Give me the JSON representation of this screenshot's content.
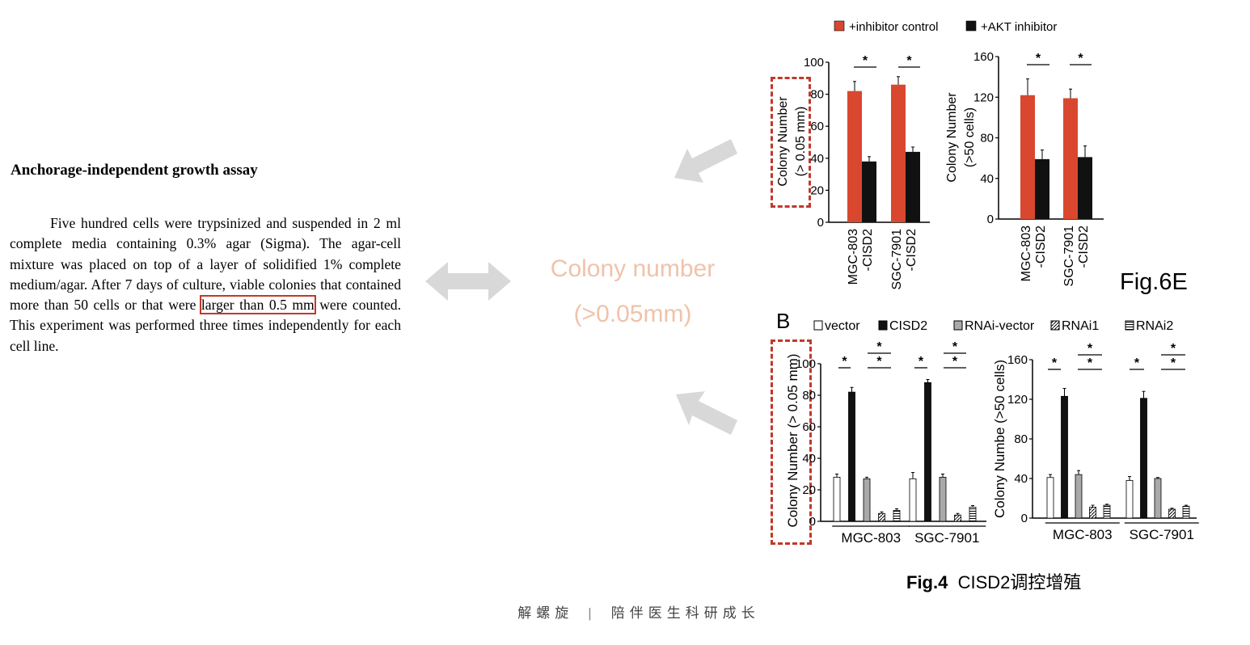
{
  "methods": {
    "heading": "Anchorage-independent growth assay",
    "body_part1": "Five hundred cells were trypsinized and suspended in 2 ml complete media containing 0.3% agar (Sigma). The agar-cell mixture was placed on top of a layer of solidified 1% complete medium/agar. After 7 days of culture, viable colonies that contained more than 50 cells or that were ",
    "body_highlight": "larger than 0.5 mm",
    "body_part2": " were counted. This experiment was performed three times independently for each cell line."
  },
  "center_note": {
    "line1": "Colony number",
    "line2": "(>0.05mm)"
  },
  "colors": {
    "red_bar": "#d9472f",
    "black_bar": "#111111",
    "gray_bar": "#a9a9a9",
    "highlight": "#c0392b",
    "arrow": "#d8d8d8",
    "note": "#efc3aa"
  },
  "figure_labels": {
    "fig6e": "Fig.6E",
    "panel_b": "B"
  },
  "caption": {
    "bold": "Fig.4",
    "text": "CISD2调控增殖"
  },
  "footer": {
    "left": "解螺旋",
    "separator": "|",
    "right": "陪伴医生科研成长"
  },
  "chart_data": [
    {
      "id": "fig6e-left",
      "type": "bar",
      "ylabel_line1": "Colony Number",
      "ylabel_line2": "(> 0.05 mm)",
      "ylim": [
        0,
        100
      ],
      "yticks": [
        0,
        20,
        40,
        60,
        80,
        100
      ],
      "groups": [
        "MGC-803\n-CISD2",
        "SGC-7901\n-CISD2"
      ],
      "legend": [
        "+inhibitor control",
        "+AKT inhibitor"
      ],
      "legend_placement": "top",
      "series": [
        {
          "name": "+inhibitor control",
          "values": [
            82,
            86
          ],
          "errors": [
            6,
            5
          ]
        },
        {
          "name": "+AKT inhibitor",
          "values": [
            38,
            44
          ],
          "errors": [
            3,
            3
          ]
        }
      ],
      "annotations": [
        "*",
        "*"
      ]
    },
    {
      "id": "fig6e-right",
      "type": "bar",
      "ylabel_line1": "Colony Number",
      "ylabel_line2": "(>50 cells)",
      "ylim": [
        0,
        160
      ],
      "yticks": [
        0,
        40,
        80,
        120,
        160
      ],
      "groups": [
        "MGC-803\n-CISD2",
        "SGC-7901\n-CISD2"
      ],
      "series": [
        {
          "name": "+inhibitor control",
          "values": [
            122,
            119
          ],
          "errors": [
            16,
            9
          ]
        },
        {
          "name": "+AKT inhibitor",
          "values": [
            59,
            61
          ],
          "errors": [
            9,
            11
          ]
        }
      ],
      "annotations": [
        "*",
        "*"
      ]
    },
    {
      "id": "fig4b-left",
      "type": "bar",
      "ylabel": "Colony Number (> 0.05 mm)",
      "ylim": [
        0,
        100
      ],
      "yticks": [
        0,
        20,
        40,
        60,
        80,
        100
      ],
      "groups": [
        "MGC-803",
        "SGC-7901"
      ],
      "legend": [
        "vector",
        "CISD2",
        "RNAi-vector",
        "RNAi1",
        "RNAi2"
      ],
      "legend_placement": "top",
      "series": [
        {
          "name": "vector",
          "values": [
            28,
            27
          ],
          "errors": [
            2,
            4
          ]
        },
        {
          "name": "CISD2",
          "values": [
            82,
            88
          ],
          "errors": [
            3,
            2
          ]
        },
        {
          "name": "RNAi-vector",
          "values": [
            27,
            28
          ],
          "errors": [
            1,
            2
          ]
        },
        {
          "name": "RNAi1",
          "values": [
            5,
            4
          ],
          "errors": [
            1,
            1
          ]
        },
        {
          "name": "RNAi2",
          "values": [
            7,
            9
          ],
          "errors": [
            1,
            1
          ]
        }
      ],
      "annotations": [
        "*",
        "*",
        "*",
        "*",
        "*",
        "*"
      ]
    },
    {
      "id": "fig4b-right",
      "type": "bar",
      "ylabel": "Colony Numbe (>50 cells)",
      "ylim": [
        0,
        160
      ],
      "yticks": [
        0,
        40,
        80,
        120,
        160
      ],
      "groups": [
        "MGC-803",
        "SGC-7901"
      ],
      "series": [
        {
          "name": "vector",
          "values": [
            41,
            38
          ],
          "errors": [
            3,
            4
          ]
        },
        {
          "name": "CISD2",
          "values": [
            123,
            121
          ],
          "errors": [
            8,
            7
          ]
        },
        {
          "name": "RNAi-vector",
          "values": [
            44,
            40
          ],
          "errors": [
            4,
            1
          ]
        },
        {
          "name": "RNAi1",
          "values": [
            11,
            9
          ],
          "errors": [
            2,
            1
          ]
        },
        {
          "name": "RNAi2",
          "values": [
            13,
            12
          ],
          "errors": [
            1,
            1
          ]
        }
      ],
      "annotations": [
        "*",
        "*",
        "*",
        "*",
        "*",
        "*"
      ]
    }
  ]
}
